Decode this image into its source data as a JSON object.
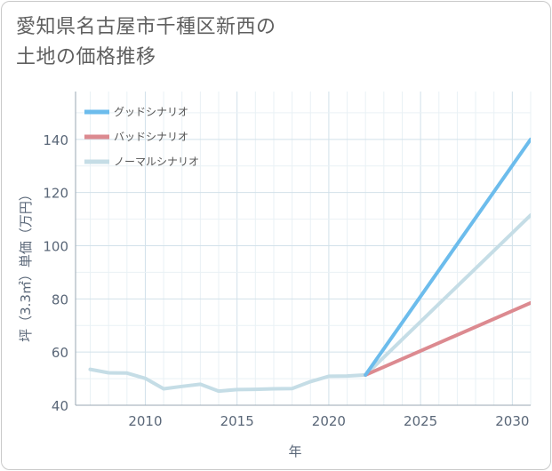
{
  "title_line1": "愛知県名古屋市千種区新西の",
  "title_line2": "土地の価格推移",
  "chart_data": {
    "type": "line",
    "title": "愛知県名古屋市千種区新西の土地の価格推移",
    "xlabel": "年",
    "ylabel": "坪（3.3㎡）単価（万円）",
    "xlim": [
      2006.2,
      2031
    ],
    "ylim": [
      40,
      158
    ],
    "xticks": [
      2010,
      2015,
      2020,
      2025,
      2030
    ],
    "yticks": [
      40,
      60,
      80,
      100,
      120,
      140
    ],
    "grid": true,
    "legend_position": "top-left",
    "history": {
      "x": [
        2007,
        2008,
        2009,
        2010,
        2011,
        2012,
        2013,
        2014,
        2015,
        2016,
        2017,
        2018,
        2019,
        2020,
        2021,
        2022
      ],
      "values": [
        53.5,
        52.2,
        52.1,
        50.1,
        46.2,
        47.1,
        47.9,
        45.3,
        45.9,
        46.0,
        46.2,
        46.3,
        48.9,
        50.9,
        51.0,
        51.4
      ],
      "color": "#c5dde6"
    },
    "series": [
      {
        "name": "グッドシナリオ",
        "color": "#6cbcec",
        "x": [
          2022,
          2031
        ],
        "values": [
          51.4,
          140
        ]
      },
      {
        "name": "バッドシナリオ",
        "color": "#dc8a90",
        "x": [
          2022,
          2031
        ],
        "values": [
          51.4,
          78.5
        ]
      },
      {
        "name": "ノーマルシナリオ",
        "color": "#c5dde6",
        "x": [
          2022,
          2031
        ],
        "values": [
          51.4,
          111.5
        ]
      }
    ]
  }
}
